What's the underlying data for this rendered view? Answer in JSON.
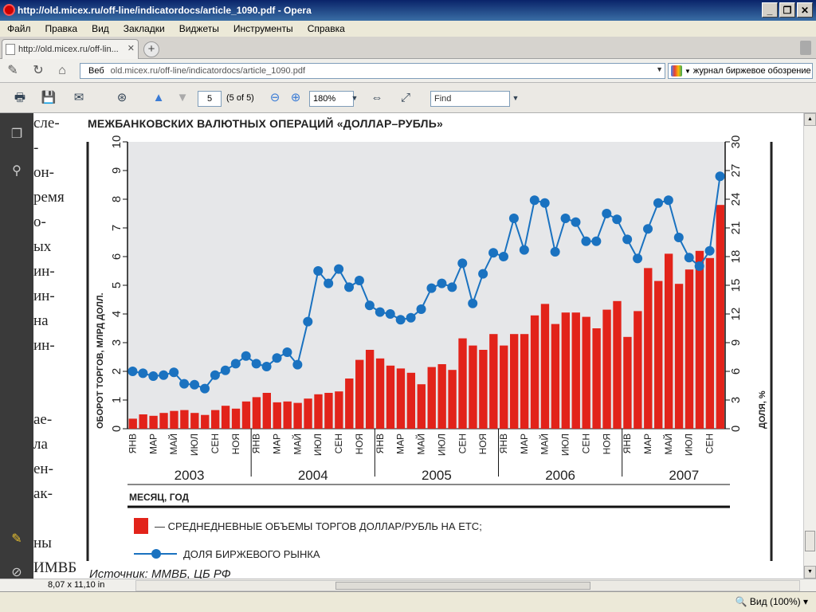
{
  "window": {
    "title": "http://old.micex.ru/off-line/indicatordocs/article_1090.pdf - Opera"
  },
  "menu": [
    "Файл",
    "Правка",
    "Вид",
    "Закладки",
    "Виджеты",
    "Инструменты",
    "Справка"
  ],
  "tab": {
    "label": "http://old.micex.ru/off-lin..."
  },
  "address": {
    "prefix": "Веб",
    "host": "old.micex.ru",
    "path": "/off-line/indicatordocs/article_1090.pdf"
  },
  "search": {
    "value": "журнал биржевое обозрение"
  },
  "pdf_toolbar": {
    "page": "5",
    "page_of": "(5 of 5)",
    "zoom": "180%",
    "find_placeholder": "Find"
  },
  "status": {
    "page_size": "8,07 x 11,10 in",
    "view": "Вид (100%)"
  },
  "side_text": [
    "сле-",
    "-",
    "он-",
    "ремя",
    "о-",
    "ых",
    "ин-",
    "ин-",
    "на",
    "ин-",
    "",
    "",
    "ае-",
    "ла",
    "ен-",
    "ак-",
    "",
    "ны",
    "ИМВБ"
  ],
  "chart_title": "МЕЖБАНКОВСКИХ ВАЛЮТНЫХ ОПЕРАЦИЙ «ДОЛЛАР–РУБЛЬ»",
  "source_text": "Источник: ММВБ, ЦБ РФ",
  "chart_data": {
    "type": "bar+line",
    "ylabel_left": "ОБОРОТ ТОРГОВ, МЛРД ДОЛЛ.",
    "ylabel_right": "ДОЛЯ, %",
    "ylim_left": [
      0,
      10
    ],
    "ylim_right": [
      0,
      30
    ],
    "yticks_left": [
      "0",
      "1",
      "2",
      "3",
      "4",
      "5",
      "6",
      "7",
      "8",
      "9",
      "10"
    ],
    "yticks_right": [
      "0",
      "3",
      "6",
      "9",
      "12",
      "15",
      "18",
      "21",
      "24",
      "27",
      "30"
    ],
    "month_labels": [
      "ЯНВ",
      "МАР",
      "МАЙ",
      "ИЮЛ",
      "СЕН",
      "НОЯ"
    ],
    "years": [
      "2003",
      "2004",
      "2005",
      "2006",
      "2007"
    ],
    "xlabel": "МЕСЯЦ, ГОД",
    "grid": false,
    "series": [
      {
        "name": "— СРЕДНЕДНЕВНЫЕ ОБЪЕМЫ ТОРГОВ ДОЛЛАР/РУБЛЬ НА ЕТС;",
        "kind": "bar",
        "color": "#e2231a",
        "values": [
          0.35,
          0.5,
          0.45,
          0.55,
          0.62,
          0.65,
          0.55,
          0.48,
          0.65,
          0.8,
          0.7,
          0.95,
          1.1,
          1.25,
          0.92,
          0.95,
          0.9,
          1.05,
          1.2,
          1.25,
          1.3,
          1.75,
          2.4,
          2.75,
          2.45,
          2.2,
          2.1,
          1.95,
          1.55,
          2.15,
          2.25,
          2.05,
          3.15,
          2.9,
          2.75,
          3.3,
          2.9,
          3.3,
          3.3,
          3.95,
          4.35,
          3.65,
          4.05,
          4.05,
          3.9,
          3.5,
          4.15,
          4.45,
          3.2,
          4.1,
          5.6,
          5.15,
          6.1,
          5.05,
          5.55,
          6.2,
          5.95,
          7.8
        ]
      },
      {
        "name": "ДОЛЯ БИРЖЕВОГО РЫНКА",
        "kind": "line",
        "color": "#1a72c0",
        "values": [
          6.0,
          5.8,
          5.5,
          5.6,
          5.9,
          4.7,
          4.6,
          4.2,
          5.6,
          6.1,
          6.8,
          7.6,
          6.8,
          6.5,
          7.4,
          8.0,
          6.7,
          11.2,
          16.5,
          15.2,
          16.7,
          14.8,
          15.5,
          12.9,
          12.2,
          12.0,
          11.4,
          11.6,
          12.5,
          14.7,
          15.2,
          14.8,
          17.3,
          13.1,
          16.2,
          18.4,
          18.0,
          22.0,
          18.7,
          23.9,
          23.6,
          18.5,
          22.0,
          21.6,
          19.6,
          19.6,
          22.5,
          21.9,
          19.8,
          17.8,
          20.9,
          23.6,
          23.9,
          20.0,
          17.9,
          17.0,
          18.6,
          26.4
        ]
      }
    ]
  }
}
